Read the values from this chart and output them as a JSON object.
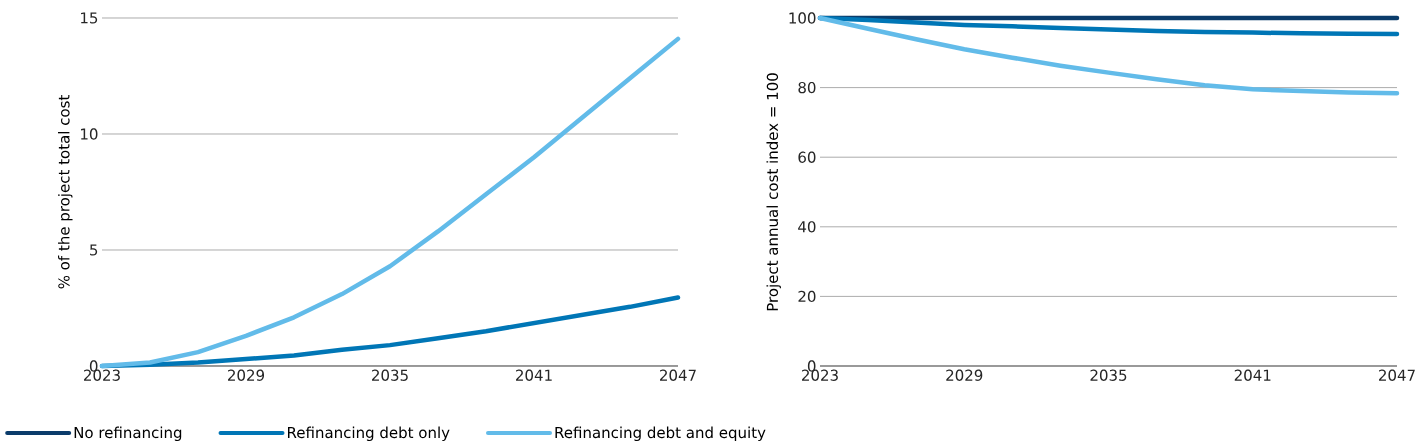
{
  "chart_data": [
    {
      "type": "line",
      "ylabel": "% of the project total cost",
      "x": [
        2023,
        2025,
        2027,
        2029,
        2031,
        2033,
        2035,
        2037,
        2039,
        2041,
        2043,
        2045,
        2047
      ],
      "series": [
        {
          "color": "#0076b6",
          "values": [
            0,
            0.05,
            0.15,
            0.3,
            0.45,
            0.7,
            0.9,
            1.2,
            1.5,
            1.85,
            2.2,
            2.55,
            2.95
          ]
        },
        {
          "color": "#62bbe9",
          "values": [
            0,
            0.15,
            0.6,
            1.3,
            2.1,
            3.1,
            4.3,
            5.8,
            7.4,
            9.0,
            10.7,
            12.4,
            14.1
          ]
        }
      ],
      "xlim": [
        2023,
        2047
      ],
      "xticks": [
        2023,
        2029,
        2035,
        2041,
        2047
      ],
      "ylim": [
        0,
        15
      ],
      "yticks": [
        0,
        5,
        10,
        15
      ],
      "grid": "y",
      "legend": false,
      "marker": "none",
      "line_style": "solid"
    },
    {
      "type": "line",
      "ylabel": "Project annual cost index = 100",
      "x": [
        2023,
        2025,
        2027,
        2029,
        2031,
        2033,
        2035,
        2037,
        2039,
        2041,
        2043,
        2045,
        2047
      ],
      "series": [
        {
          "name": "No refinancing",
          "color": "#0b3c6b",
          "values": [
            100,
            100,
            100,
            100,
            100,
            100,
            100,
            100,
            100,
            100,
            100,
            100,
            100
          ]
        },
        {
          "name": "Refinancing debt only",
          "color": "#0076b6",
          "values": [
            100,
            99.4,
            98.7,
            98.0,
            97.6,
            97.1,
            96.7,
            96.3,
            96.0,
            95.8,
            95.6,
            95.5,
            95.4
          ]
        },
        {
          "name": "Refinancing debt and equity",
          "color": "#62bbe9",
          "values": [
            100,
            96.9,
            93.9,
            91.0,
            88.6,
            86.3,
            84.3,
            82.4,
            80.7,
            79.5,
            79.0,
            78.6,
            78.4
          ]
        }
      ],
      "xlim": [
        2023,
        2047
      ],
      "xticks": [
        2023,
        2029,
        2035,
        2041,
        2047
      ],
      "ylim": [
        0,
        100
      ],
      "yticks": [
        0,
        20,
        40,
        60,
        80,
        100
      ],
      "grid": "y",
      "legend": "bottom",
      "marker": "none",
      "line_style": "solid"
    }
  ]
}
